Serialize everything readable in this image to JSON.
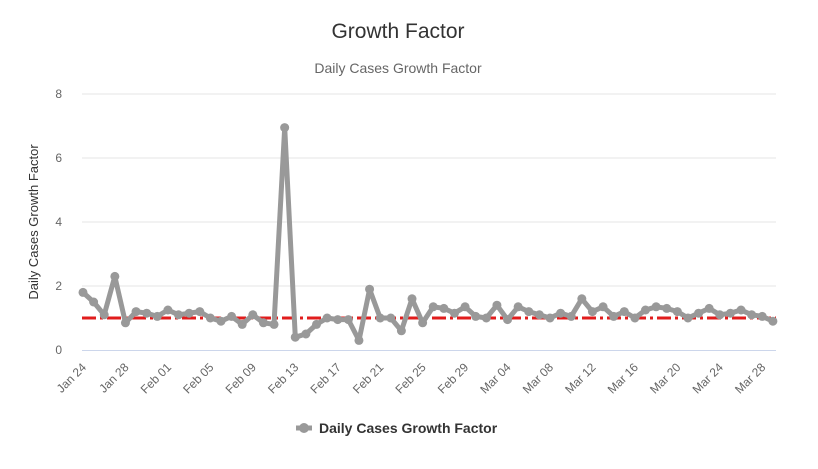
{
  "chart_data": {
    "type": "line",
    "title": "Growth Factor",
    "subtitle": "Daily Cases Growth Factor",
    "ylabel": "Daily Cases Growth Factor",
    "xlabel": "",
    "ylim": [
      0,
      8
    ],
    "y_ticks": [
      0,
      2,
      4,
      6,
      8
    ],
    "grid": "horizontal",
    "legend_placement": "bottom-center",
    "x_tick_labels": [
      "Jan 24",
      "Jan 28",
      "Feb 01",
      "Feb 05",
      "Feb 09",
      "Feb 13",
      "Feb 17",
      "Feb 21",
      "Feb 25",
      "Feb 29",
      "Mar 04",
      "Mar 08",
      "Mar 12",
      "Mar 16",
      "Mar 20",
      "Mar 24",
      "Mar 28"
    ],
    "x_start": "Jan 24",
    "reference_line": {
      "value": 1,
      "color": "#e11d1d",
      "style": "dash-dot"
    },
    "series": [
      {
        "name": "Daily Cases Growth Factor",
        "color": "#999999",
        "x": [
          "Jan 24",
          "Jan 25",
          "Jan 26",
          "Jan 27",
          "Jan 28",
          "Jan 29",
          "Jan 30",
          "Jan 31",
          "Feb 01",
          "Feb 02",
          "Feb 03",
          "Feb 04",
          "Feb 05",
          "Feb 06",
          "Feb 07",
          "Feb 08",
          "Feb 09",
          "Feb 10",
          "Feb 11",
          "Feb 12",
          "Feb 13",
          "Feb 14",
          "Feb 15",
          "Feb 16",
          "Feb 17",
          "Feb 18",
          "Feb 19",
          "Feb 20",
          "Feb 21",
          "Feb 22",
          "Feb 23",
          "Feb 24",
          "Feb 25",
          "Feb 26",
          "Feb 27",
          "Feb 28",
          "Feb 29",
          "Mar 01",
          "Mar 02",
          "Mar 03",
          "Mar 04",
          "Mar 05",
          "Mar 06",
          "Mar 07",
          "Mar 08",
          "Mar 09",
          "Mar 10",
          "Mar 11",
          "Mar 12",
          "Mar 13",
          "Mar 14",
          "Mar 15",
          "Mar 16",
          "Mar 17",
          "Mar 18",
          "Mar 19",
          "Mar 20",
          "Mar 21",
          "Mar 22",
          "Mar 23",
          "Mar 24",
          "Mar 25",
          "Mar 26",
          "Mar 27",
          "Mar 28",
          "Mar 29"
        ],
        "values": [
          1.8,
          1.5,
          1.1,
          2.3,
          0.85,
          1.2,
          1.15,
          1.05,
          1.25,
          1.1,
          1.15,
          1.2,
          1.0,
          0.9,
          1.05,
          0.8,
          1.1,
          0.85,
          0.8,
          6.95,
          0.4,
          0.5,
          0.8,
          1.0,
          0.95,
          0.95,
          0.3,
          1.9,
          1.0,
          1.0,
          0.6,
          1.6,
          0.85,
          1.35,
          1.3,
          1.15,
          1.35,
          1.05,
          1.0,
          1.4,
          0.95,
          1.35,
          1.2,
          1.1,
          1.0,
          1.15,
          1.05,
          1.6,
          1.2,
          1.35,
          1.05,
          1.2,
          1.0,
          1.25,
          1.35,
          1.3,
          1.2,
          1.0,
          1.15,
          1.3,
          1.1,
          1.15,
          1.25,
          1.1,
          1.05,
          0.9
        ]
      }
    ]
  }
}
